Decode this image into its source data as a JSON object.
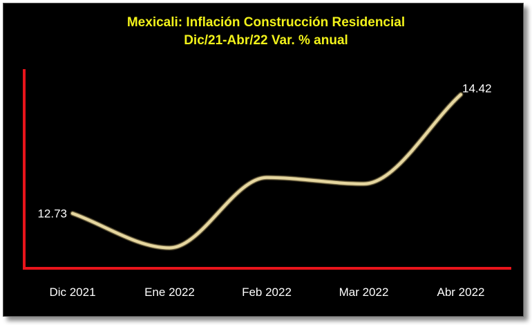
{
  "chart_data": {
    "type": "line",
    "title": "Mexicali: Inflación Construcción Residencial",
    "subtitle": "Dic/21-Abr/22 Var. % anual",
    "categories": [
      "Dic 2021",
      "Ene 2022",
      "Feb 2022",
      "Mar 2022",
      "Abr 2022"
    ],
    "series": [
      {
        "name": "Var. % anual",
        "values": [
          12.73,
          12.24,
          13.24,
          13.15,
          14.42
        ]
      }
    ],
    "data_labels": [
      {
        "index": 0,
        "text": "12.73"
      },
      {
        "index": 4,
        "text": "14.42"
      }
    ],
    "ylim": [
      11.95,
      14.78
    ],
    "xlabel": "",
    "ylabel": "",
    "smooth": true,
    "grid": false,
    "colors": {
      "background": "#000000",
      "title": "#f2f21a",
      "axis": "#e8141b",
      "line": "#e6d7a0",
      "text": "#ffffff"
    }
  }
}
